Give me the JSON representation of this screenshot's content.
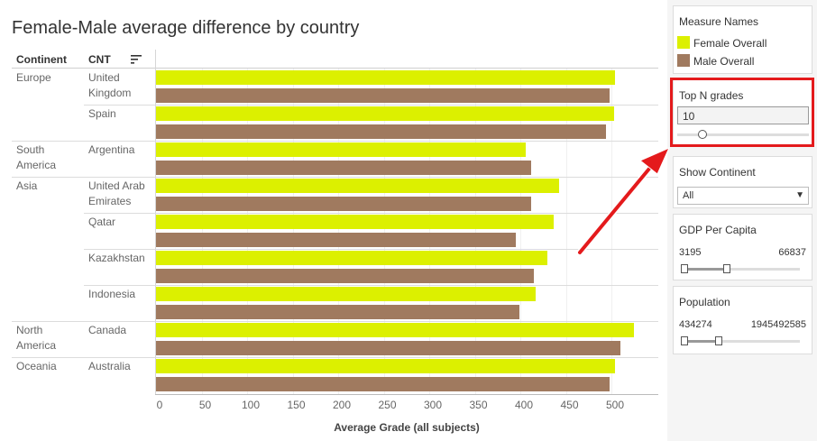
{
  "chart_title": "Female-Male average difference by country",
  "table_headers": {
    "continent": "Continent",
    "country": "CNT"
  },
  "icons": {
    "sort": "sort-descending-icon",
    "dropdown": "chevron-down-icon",
    "annotation": "red-arrow"
  },
  "colors": {
    "female": "#dcf000",
    "male": "#a07a5f",
    "highlight": "#e41a1c"
  },
  "chart_data": {
    "type": "bar",
    "orientation": "horizontal",
    "title": "Female-Male average difference by country",
    "xlabel": "Average Grade (all subjects)",
    "xlim": [
      0,
      550
    ],
    "x_ticks": [
      0,
      50,
      100,
      150,
      200,
      250,
      300,
      350,
      400,
      450,
      500
    ],
    "grid": true,
    "legend_title": "Measure Names",
    "rows": [
      {
        "continent": "Europe",
        "country": "United Kingdom",
        "female": 504,
        "male": 498
      },
      {
        "continent": "",
        "country": "Spain",
        "female": 503,
        "male": 494
      },
      {
        "continent": "South America",
        "country": "Argentina",
        "female": 406,
        "male": 412
      },
      {
        "continent": "Asia",
        "country": "United Arab Emirates",
        "female": 443,
        "male": 412
      },
      {
        "continent": "",
        "country": "Qatar",
        "female": 437,
        "male": 395
      },
      {
        "continent": "",
        "country": "Kazakhstan",
        "female": 430,
        "male": 415
      },
      {
        "continent": "",
        "country": "Indonesia",
        "female": 417,
        "male": 399
      },
      {
        "continent": "North America",
        "country": "Canada",
        "female": 525,
        "male": 510
      },
      {
        "continent": "Oceania",
        "country": "Australia",
        "female": 504,
        "male": 498
      }
    ],
    "series": [
      {
        "name": "Female Overall",
        "color": "#dcf000"
      },
      {
        "name": "Male Overall",
        "color": "#a07a5f"
      }
    ]
  },
  "legend": {
    "title": "Measure Names",
    "items": [
      {
        "label": "Female Overall",
        "color": "#dcf000"
      },
      {
        "label": "Male Overall",
        "color": "#a07a5f"
      }
    ]
  },
  "filters": {
    "top_n": {
      "title": "Top N grades",
      "value": "10",
      "slider_fraction": 0.1
    },
    "continent": {
      "title": "Show Continent",
      "selected": "All"
    },
    "gdp": {
      "title": "GDP Per Capita",
      "min": "3195",
      "max": "66837",
      "low_fraction": 0.0,
      "high_fraction": 0.38
    },
    "population": {
      "title": "Population",
      "min": "434274",
      "max": "1945492585",
      "low_fraction": 0.0,
      "high_fraction": 0.31
    }
  }
}
